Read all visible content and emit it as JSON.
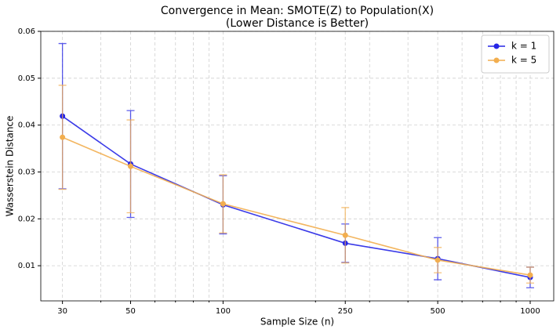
{
  "chart_data": {
    "type": "errorbar-line",
    "title": "Convergence in Mean: SMOTE(Z) to Population(X)",
    "subtitle": "(Lower Distance is Better)",
    "x_label": "Sample Size (n)",
    "y_label": "Wasserstein Distance",
    "x": [
      30,
      50,
      100,
      250,
      500,
      1000
    ],
    "series": [
      {
        "name": "k = 1",
        "color": "#2626e6",
        "values": [
          0.0419,
          0.0317,
          0.023,
          0.0148,
          0.0115,
          0.0075
        ],
        "errors": [
          0.0155,
          0.0114,
          0.0062,
          0.0041,
          0.0045,
          0.0022
        ]
      },
      {
        "name": "k = 5",
        "color": "#f2ae4f",
        "values": [
          0.0374,
          0.0312,
          0.0232,
          0.0165,
          0.0112,
          0.008
        ],
        "errors": [
          0.0111,
          0.0099,
          0.0062,
          0.0059,
          0.0027,
          0.0017
        ]
      }
    ],
    "xscale": "log",
    "xlim": [
      25.5,
      1193
    ],
    "xticks": [
      30,
      50,
      100,
      250,
      500,
      1000
    ],
    "xminorticks": [
      40,
      60,
      70,
      80,
      90,
      200,
      300,
      400,
      600,
      700,
      800,
      900
    ],
    "ylim": [
      0.0025,
      0.06
    ],
    "yticks": [
      0.01,
      0.02,
      0.03,
      0.04,
      0.05,
      0.06
    ],
    "grid": true,
    "legend": "upper right"
  }
}
